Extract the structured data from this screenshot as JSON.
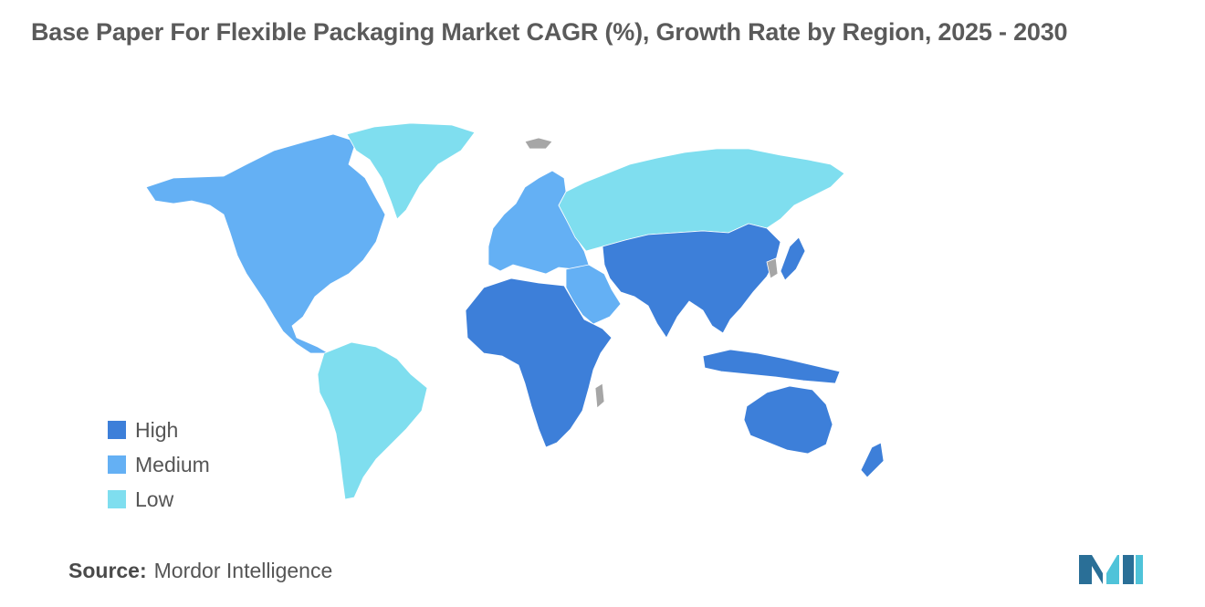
{
  "title": "Base Paper For Flexible Packaging Market CAGR (%), Growth Rate by Region, 2025 - 2030",
  "legend": [
    {
      "label": "High",
      "color": "#3d7fd9"
    },
    {
      "label": "Medium",
      "color": "#64b0f4"
    },
    {
      "label": "Low",
      "color": "#7fdeef"
    }
  ],
  "no_data_color": "#a6a6a6",
  "regions": {
    "north_america": "Medium",
    "europe": "Medium",
    "middle_east": "Medium",
    "greenland": "Low",
    "south_america": "Low",
    "russia": "Low",
    "africa": "High",
    "asia_pacific": "High",
    "oceania": "High"
  },
  "source": {
    "label": "Source:",
    "text": "Mordor Intelligence"
  },
  "logo": {
    "color_dark": "#2a6f97",
    "color_light": "#4fc3d9"
  }
}
